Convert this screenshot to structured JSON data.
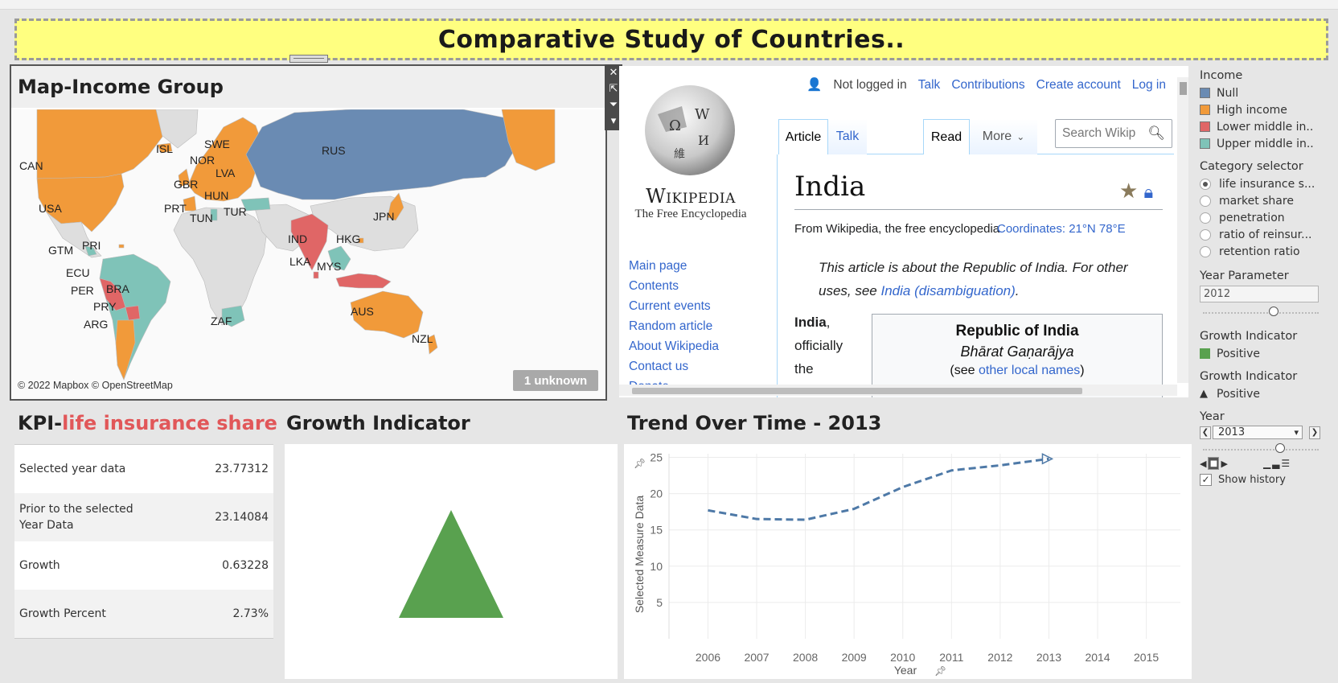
{
  "dashboard": {
    "title": "Comparative Study of Countries.."
  },
  "map": {
    "title": "Map-Income Group",
    "copyright": "© 2022 Mapbox © OpenStreetMap",
    "unknown_badge": "1 unknown",
    "country_labels": [
      "CAN",
      "USA",
      "ISL",
      "SWE",
      "NOR",
      "LVA",
      "GBR",
      "HUN",
      "PRT",
      "TUN",
      "TUR",
      "RUS",
      "IND",
      "HKG",
      "JPN",
      "LKA",
      "MYS",
      "GTM",
      "PRI",
      "ECU",
      "PER",
      "BRA",
      "PRY",
      "ARG",
      "ZAF",
      "AUS",
      "NZL"
    ],
    "colors": {
      "null": "#6a8bb3",
      "high": "#f19a3a",
      "lower_middle": "#e06666",
      "upper_middle": "#7fc3b8",
      "no_data": "#dedede"
    }
  },
  "wiki": {
    "wordmark": "Wikipedia",
    "tagline": "The Free Encyclopedia",
    "user_bar": {
      "not_logged": "Not logged in",
      "talk": "Talk",
      "contributions": "Contributions",
      "create": "Create account",
      "login": "Log in"
    },
    "tabs": {
      "article": "Article",
      "talk": "Talk",
      "read": "Read",
      "more": "More"
    },
    "search_placeholder": "Search Wikip",
    "nav": [
      "Main page",
      "Contents",
      "Current events",
      "Random article",
      "About Wikipedia",
      "Contact us",
      "Donate"
    ],
    "page_title": "India",
    "from_line": "From Wikipedia, the free encyclopedia",
    "coords": "Coordinates:  21°N 78°E",
    "hatnote_pre": "This article is about the Republic of India. For other uses, see ",
    "hatnote_link": "India (disambiguation)",
    "hatnote_post": ".",
    "lead_bold": "India",
    "lead_rest": ", officially the",
    "infobox": {
      "name": "Republic of India",
      "native": "Bhārat Gaṇarājya",
      "see_pre": "(see ",
      "see_link": "other local names",
      "see_post": ")"
    }
  },
  "sidebar": {
    "income_title": "Income",
    "income_items": [
      {
        "label": "Null",
        "color": "#6a8bb3"
      },
      {
        "label": "High income",
        "color": "#f19a3a"
      },
      {
        "label": "Lower middle in..",
        "color": "#e06666"
      },
      {
        "label": "Upper middle in..",
        "color": "#7fc3b8"
      }
    ],
    "category_title": "Category selector",
    "category_items": [
      "life insurance s...",
      "market share",
      "penetration",
      "ratio of reinsur...",
      "retention ratio"
    ],
    "category_selected": 0,
    "year_param_title": "Year Parameter",
    "year_param_value": "2012",
    "growth_title_1": "Growth Indicator",
    "growth_item_1": "Positive",
    "growth_color": "#59a14f",
    "growth_title_2": "Growth Indicator",
    "growth_item_2": "Positive",
    "year_title": "Year",
    "year_value": "2013",
    "show_history": "Show history"
  },
  "kpi": {
    "title_prefix": "KPI-",
    "title_highlight": "life insurance share",
    "rows": [
      {
        "label": "Selected year data",
        "value": "23.77312"
      },
      {
        "label": "Prior to the selected Year Data",
        "value": "23.14084"
      },
      {
        "label": "Growth",
        "value": "0.63228"
      },
      {
        "label": "Growth Percent",
        "value": "2.73%"
      }
    ]
  },
  "growth": {
    "title": "Growth Indicator",
    "direction": "Positive",
    "color": "#59a14f"
  },
  "trend": {
    "title": "Trend Over Time - 2013"
  },
  "chart_data": {
    "type": "line",
    "title": "Trend Over Time - 2013",
    "xlabel": "Year",
    "ylabel": "Selected Measure Data",
    "x": [
      2006,
      2007,
      2008,
      2009,
      2010,
      2011,
      2012,
      2013
    ],
    "x_ticks": [
      2006,
      2007,
      2008,
      2009,
      2010,
      2011,
      2012,
      2013,
      2014,
      2015
    ],
    "series": [
      {
        "values": [
          17.7,
          16.5,
          16.4,
          17.9,
          20.9,
          23.2,
          23.9,
          24.8
        ],
        "color": "#4e79a7",
        "style": "dashed"
      }
    ],
    "y_ticks": [
      5,
      10,
      15,
      20,
      25
    ],
    "ylim": [
      0,
      25.5
    ],
    "xlim": [
      2005.2,
      2015.7
    ],
    "grid": true
  }
}
